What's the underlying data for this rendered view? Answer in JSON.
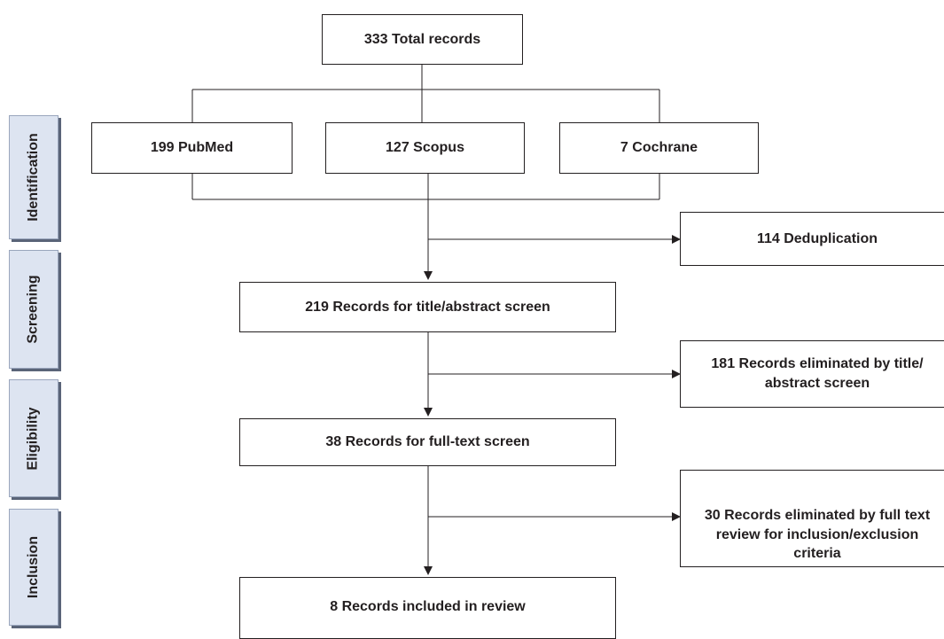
{
  "stages": [
    "Identification",
    "Screening",
    "Eligibility",
    "Inclusion"
  ],
  "boxes": {
    "total": "333 Total records",
    "pubmed": "199 PubMed",
    "scopus": "127 Scopus",
    "cochrane": "7 Cochrane",
    "dedup": "114 Deduplication",
    "title_screen": "219 Records for title/abstract screen",
    "elim_title": [
      "181 Records eliminated by title/",
      "abstract screen"
    ],
    "fulltext": "38 Records for full-text screen",
    "elim_full": [
      "30 Records eliminated by full text",
      "review for inclusion/exclusion",
      "criteria"
    ],
    "included": "8 Records included in review"
  },
  "colors": {
    "stage_fill": "#dde4f1",
    "stage_shadow": "#5a6478",
    "line": "#231f20"
  }
}
